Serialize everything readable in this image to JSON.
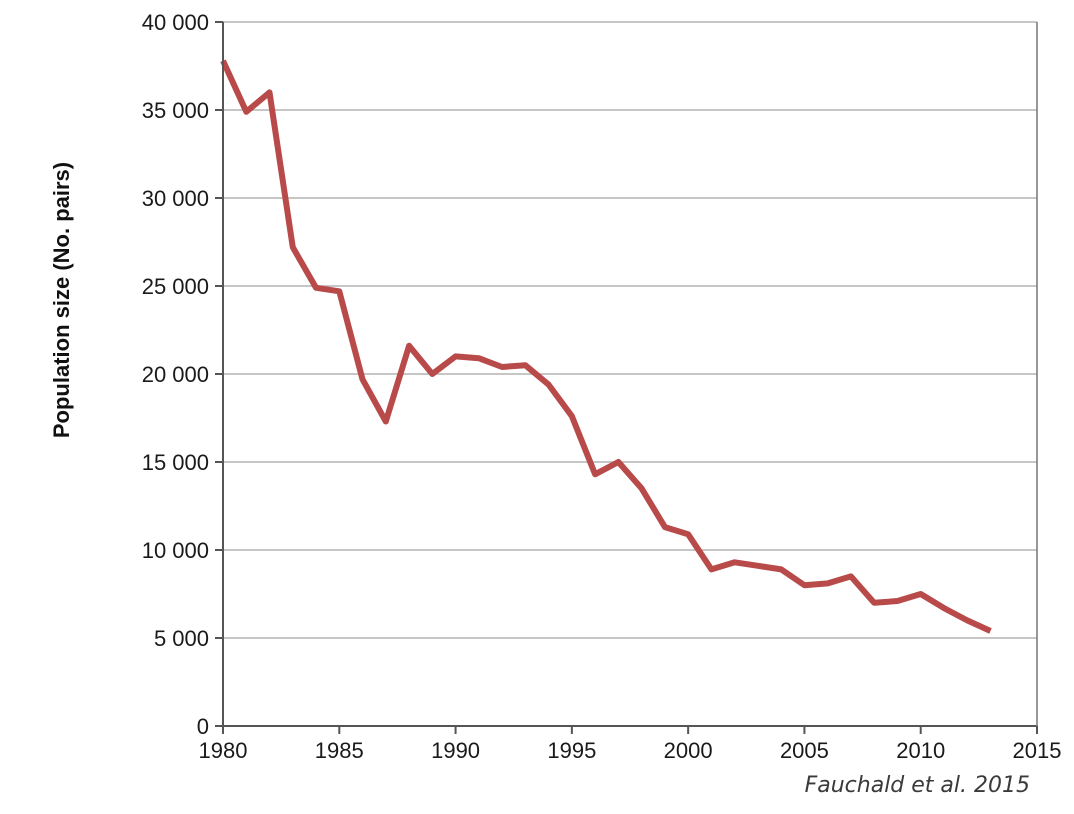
{
  "chart_data": {
    "type": "line",
    "title": "",
    "xlabel": "",
    "ylabel": "Population size (No. pairs)",
    "xlim": [
      1980,
      2015
    ],
    "ylim": [
      0,
      40000
    ],
    "x_ticks": [
      1980,
      1985,
      1990,
      1995,
      2000,
      2005,
      2010,
      2015
    ],
    "x_tick_labels": [
      "1980",
      "1985",
      "1990",
      "1995",
      "2000",
      "2005",
      "2010",
      "2015"
    ],
    "y_ticks": [
      0,
      5000,
      10000,
      15000,
      20000,
      25000,
      30000,
      35000,
      40000
    ],
    "y_tick_labels": [
      "0",
      "5 000",
      "10 000",
      "15 000",
      "20 000",
      "25 000",
      "30 000",
      "35 000",
      "40 000"
    ],
    "grid": "horizontal",
    "legend": "none",
    "series": [
      {
        "color": "#b94a4a",
        "x": [
          1980,
          1981,
          1982,
          1983,
          1984,
          1985,
          1986,
          1987,
          1988,
          1989,
          1990,
          1991,
          1992,
          1993,
          1994,
          1995,
          1996,
          1997,
          1998,
          1999,
          2000,
          2001,
          2002,
          2003,
          2004,
          2005,
          2006,
          2007,
          2008,
          2009,
          2010,
          2011,
          2012,
          2013
        ],
        "values": [
          37800,
          34900,
          36000,
          27200,
          24900,
          24700,
          19700,
          17300,
          21600,
          20000,
          21000,
          20900,
          20400,
          20500,
          19400,
          17600,
          14300,
          15000,
          13500,
          11300,
          10900,
          8900,
          9300,
          9100,
          8900,
          8000,
          8100,
          8500,
          7000,
          7100,
          7500,
          6700,
          6000,
          5400
        ]
      }
    ]
  },
  "source_note": "Fauchald et al. 2015"
}
